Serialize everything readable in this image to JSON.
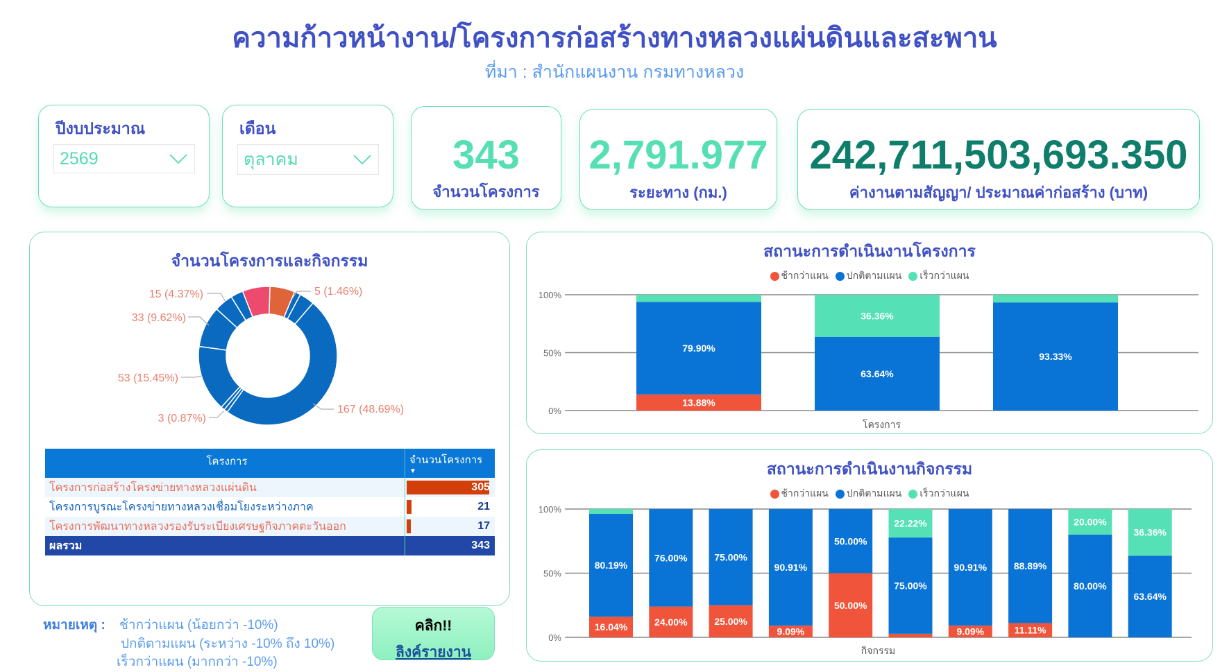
{
  "header": {
    "title": "ความก้าวหน้างาน/โครงการก่อสร้างทางหลวงแผ่นดินและสะพาน",
    "subtitle": "ที่มา : สำนักแผนงาน กรมทางหลวง"
  },
  "filters": {
    "year": {
      "label": "ปีงบประมาณ",
      "value": "2569"
    },
    "month": {
      "label": "เดือน",
      "value": "ตุลาคม"
    }
  },
  "kpis": [
    {
      "value": "343",
      "label": "จำนวนโครงการ",
      "color": "#55dfb3"
    },
    {
      "value": "2,791.977",
      "label": "ระยะทาง (กม.)",
      "color": "#55dfb3"
    },
    {
      "value": "242,711,503,693.350",
      "label": "ค่างานตามสัญญา/ ประมาณค่าก่อสร้าง (บาท)",
      "color": "#0e7e6b"
    }
  ],
  "left_panel": {
    "title": "จำนวนโครงการและกิจกรรม",
    "donut_labels": [
      {
        "text": "15 (4.37%)"
      },
      {
        "text": "5 (1.46%)"
      },
      {
        "text": "33 (9.62%)"
      },
      {
        "text": "53 (15.45%)"
      },
      {
        "text": "3 (0.87%)"
      },
      {
        "text": "167 (48.69%)"
      }
    ],
    "table": {
      "headers": [
        "โครงการ",
        "จำนวนโครงการ"
      ],
      "sort_indicator": "▼",
      "rows": [
        {
          "name": "โครงการก่อสร้างโครงข่ายทางหลวงแผ่นดิน",
          "count": "305",
          "name_color": "#e8705a"
        },
        {
          "name": "โครงการบูรณะโครงข่ายทางหลวงเชื่อมโยงระหว่างภาค",
          "count": "21",
          "name_color": "#1565c0"
        },
        {
          "name": "โครงการพัฒนาทางหลวงรองรับระเบียงเศรษฐกิจภาคตะวันออก",
          "count": "17",
          "name_color": "#e8705a"
        }
      ],
      "total": {
        "label": "ผลรวม",
        "count": "343"
      }
    }
  },
  "notes": {
    "label": "หมายเหตุ :",
    "lines": [
      "ช้ากว่าแผน (น้อยกว่า -10%)",
      "ปกติตามแผน (ระหว่าง -10% ถึง 10%)",
      "เร็วกว่าแผน (มากกว่า -10%)"
    ]
  },
  "link_button": {
    "line1": "คลิก!!",
    "line2": "ลิงค์รายงาน"
  },
  "legend": [
    {
      "label": "ช้ากว่าแผน",
      "color": "#f0553b"
    },
    {
      "label": "ปกติตามแผน",
      "color": "#0a74d6"
    },
    {
      "label": "เร็วกว่าแผน",
      "color": "#55e0b5"
    }
  ],
  "chart_data": [
    {
      "type": "pie",
      "title": "จำนวนโครงการและกิจกรรม",
      "donut": true,
      "total": 343,
      "slices": [
        {
          "value": 20,
          "color": "#e0643a"
        },
        {
          "value": 5,
          "label": "5 (1.46%)",
          "color": "#0a6abf"
        },
        {
          "value": 12,
          "color": "#0a6abf"
        },
        {
          "value": 167,
          "label": "167 (48.69%)",
          "color": "#0a6abf"
        },
        {
          "value": 3,
          "label": "3 (0.87%)",
          "color": "#0a6abf"
        },
        {
          "value": 3,
          "color": "#0a6abf"
        },
        {
          "value": 53,
          "label": "53 (15.45%)",
          "color": "#0a6abf"
        },
        {
          "value": 33,
          "label": "33 (9.62%)",
          "color": "#0a6abf"
        },
        {
          "value": 15,
          "label": "15 (4.37%)",
          "color": "#0a6abf"
        },
        {
          "value": 10,
          "color": "#0a6abf"
        },
        {
          "value": 22,
          "color": "#ee4a6e"
        }
      ]
    },
    {
      "type": "bar",
      "stacked": "percent",
      "title": "สถานะการดำเนินงานโครงการ",
      "xlabel": "โครงการ",
      "ylabel": "",
      "ylim": [
        0,
        100
      ],
      "yticks": [
        "0%",
        "50%",
        "100%"
      ],
      "categories": [
        "1",
        "2",
        "3"
      ],
      "series": [
        {
          "name": "ช้ากว่าแผน",
          "values": [
            13.88,
            0,
            0
          ],
          "labels": [
            "13.88%",
            "",
            ""
          ]
        },
        {
          "name": "ปกติตามแผน",
          "values": [
            79.9,
            63.64,
            93.33
          ],
          "labels": [
            "79.90%",
            "63.64%",
            "93.33%"
          ]
        },
        {
          "name": "เร็วกว่าแผน",
          "values": [
            6.22,
            36.36,
            6.67
          ],
          "labels": [
            "",
            "36.36%",
            ""
          ]
        }
      ]
    },
    {
      "type": "bar",
      "stacked": "percent",
      "title": "สถานะการดำเนินงานกิจกรรม",
      "xlabel": "กิจกรรม",
      "ylabel": "",
      "ylim": [
        0,
        100
      ],
      "yticks": [
        "0%",
        "50%",
        "100%"
      ],
      "categories": [
        "1",
        "2",
        "3",
        "4",
        "5",
        "6",
        "7",
        "8",
        "9",
        "10"
      ],
      "series": [
        {
          "name": "ช้ากว่าแผน",
          "values": [
            16.04,
            24.0,
            25.0,
            9.09,
            50.0,
            2.78,
            9.09,
            11.11,
            0,
            0
          ],
          "labels": [
            "16.04%",
            "24.00%",
            "25.00%",
            "9.09%",
            "50.00%",
            "",
            "9.09%",
            "11.11%",
            "",
            ""
          ]
        },
        {
          "name": "ปกติตามแผน",
          "values": [
            80.19,
            76.0,
            75.0,
            90.91,
            50.0,
            75.0,
            90.91,
            88.89,
            80.0,
            63.64
          ],
          "labels": [
            "80.19%",
            "76.00%",
            "75.00%",
            "90.91%",
            "50.00%",
            "75.00%",
            "90.91%",
            "88.89%",
            "80.00%",
            "63.64%"
          ]
        },
        {
          "name": "เร็วกว่าแผน",
          "values": [
            3.77,
            0,
            0,
            0,
            0,
            22.22,
            0,
            0,
            20.0,
            36.36
          ],
          "labels": [
            "",
            "",
            "",
            "",
            "",
            "22.22%",
            "",
            "",
            "20.00%",
            "36.36%"
          ]
        }
      ]
    }
  ]
}
